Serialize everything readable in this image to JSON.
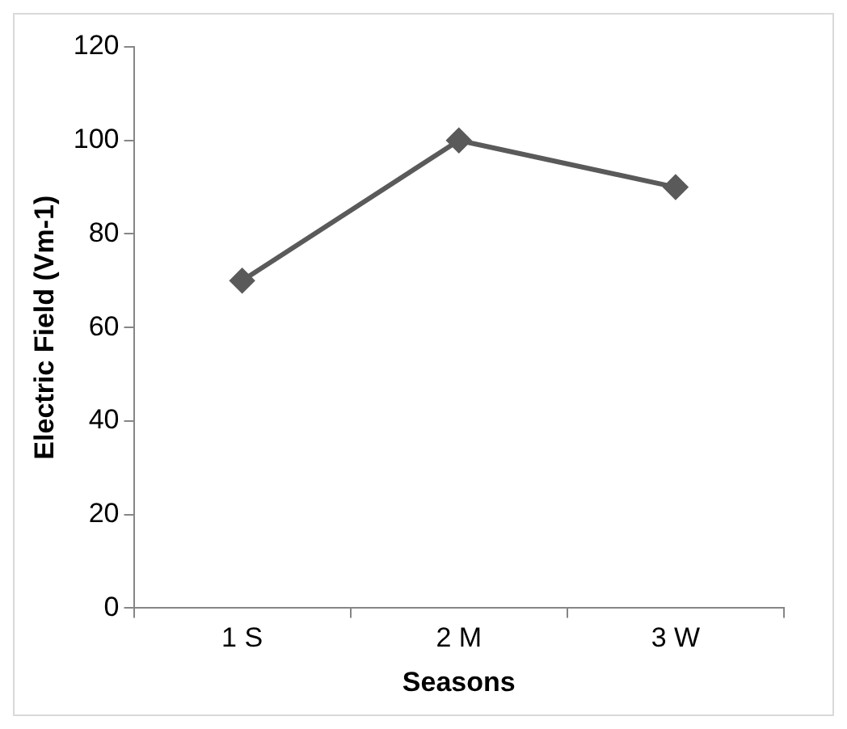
{
  "chart_data": {
    "type": "line",
    "xlabel": "Seasons",
    "ylabel": "Electric Field (Vm-1)",
    "categories": [
      "1 S",
      "2 M",
      "3 W"
    ],
    "series": [
      {
        "color": "#5a5a5a",
        "values": [
          70,
          100,
          90
        ]
      }
    ],
    "ylim": [
      0,
      120
    ],
    "yticks": [
      0,
      20,
      40,
      60,
      80,
      100,
      120
    ],
    "grid": false,
    "legend": false,
    "marker": "diamond",
    "line_style": "solid"
  }
}
